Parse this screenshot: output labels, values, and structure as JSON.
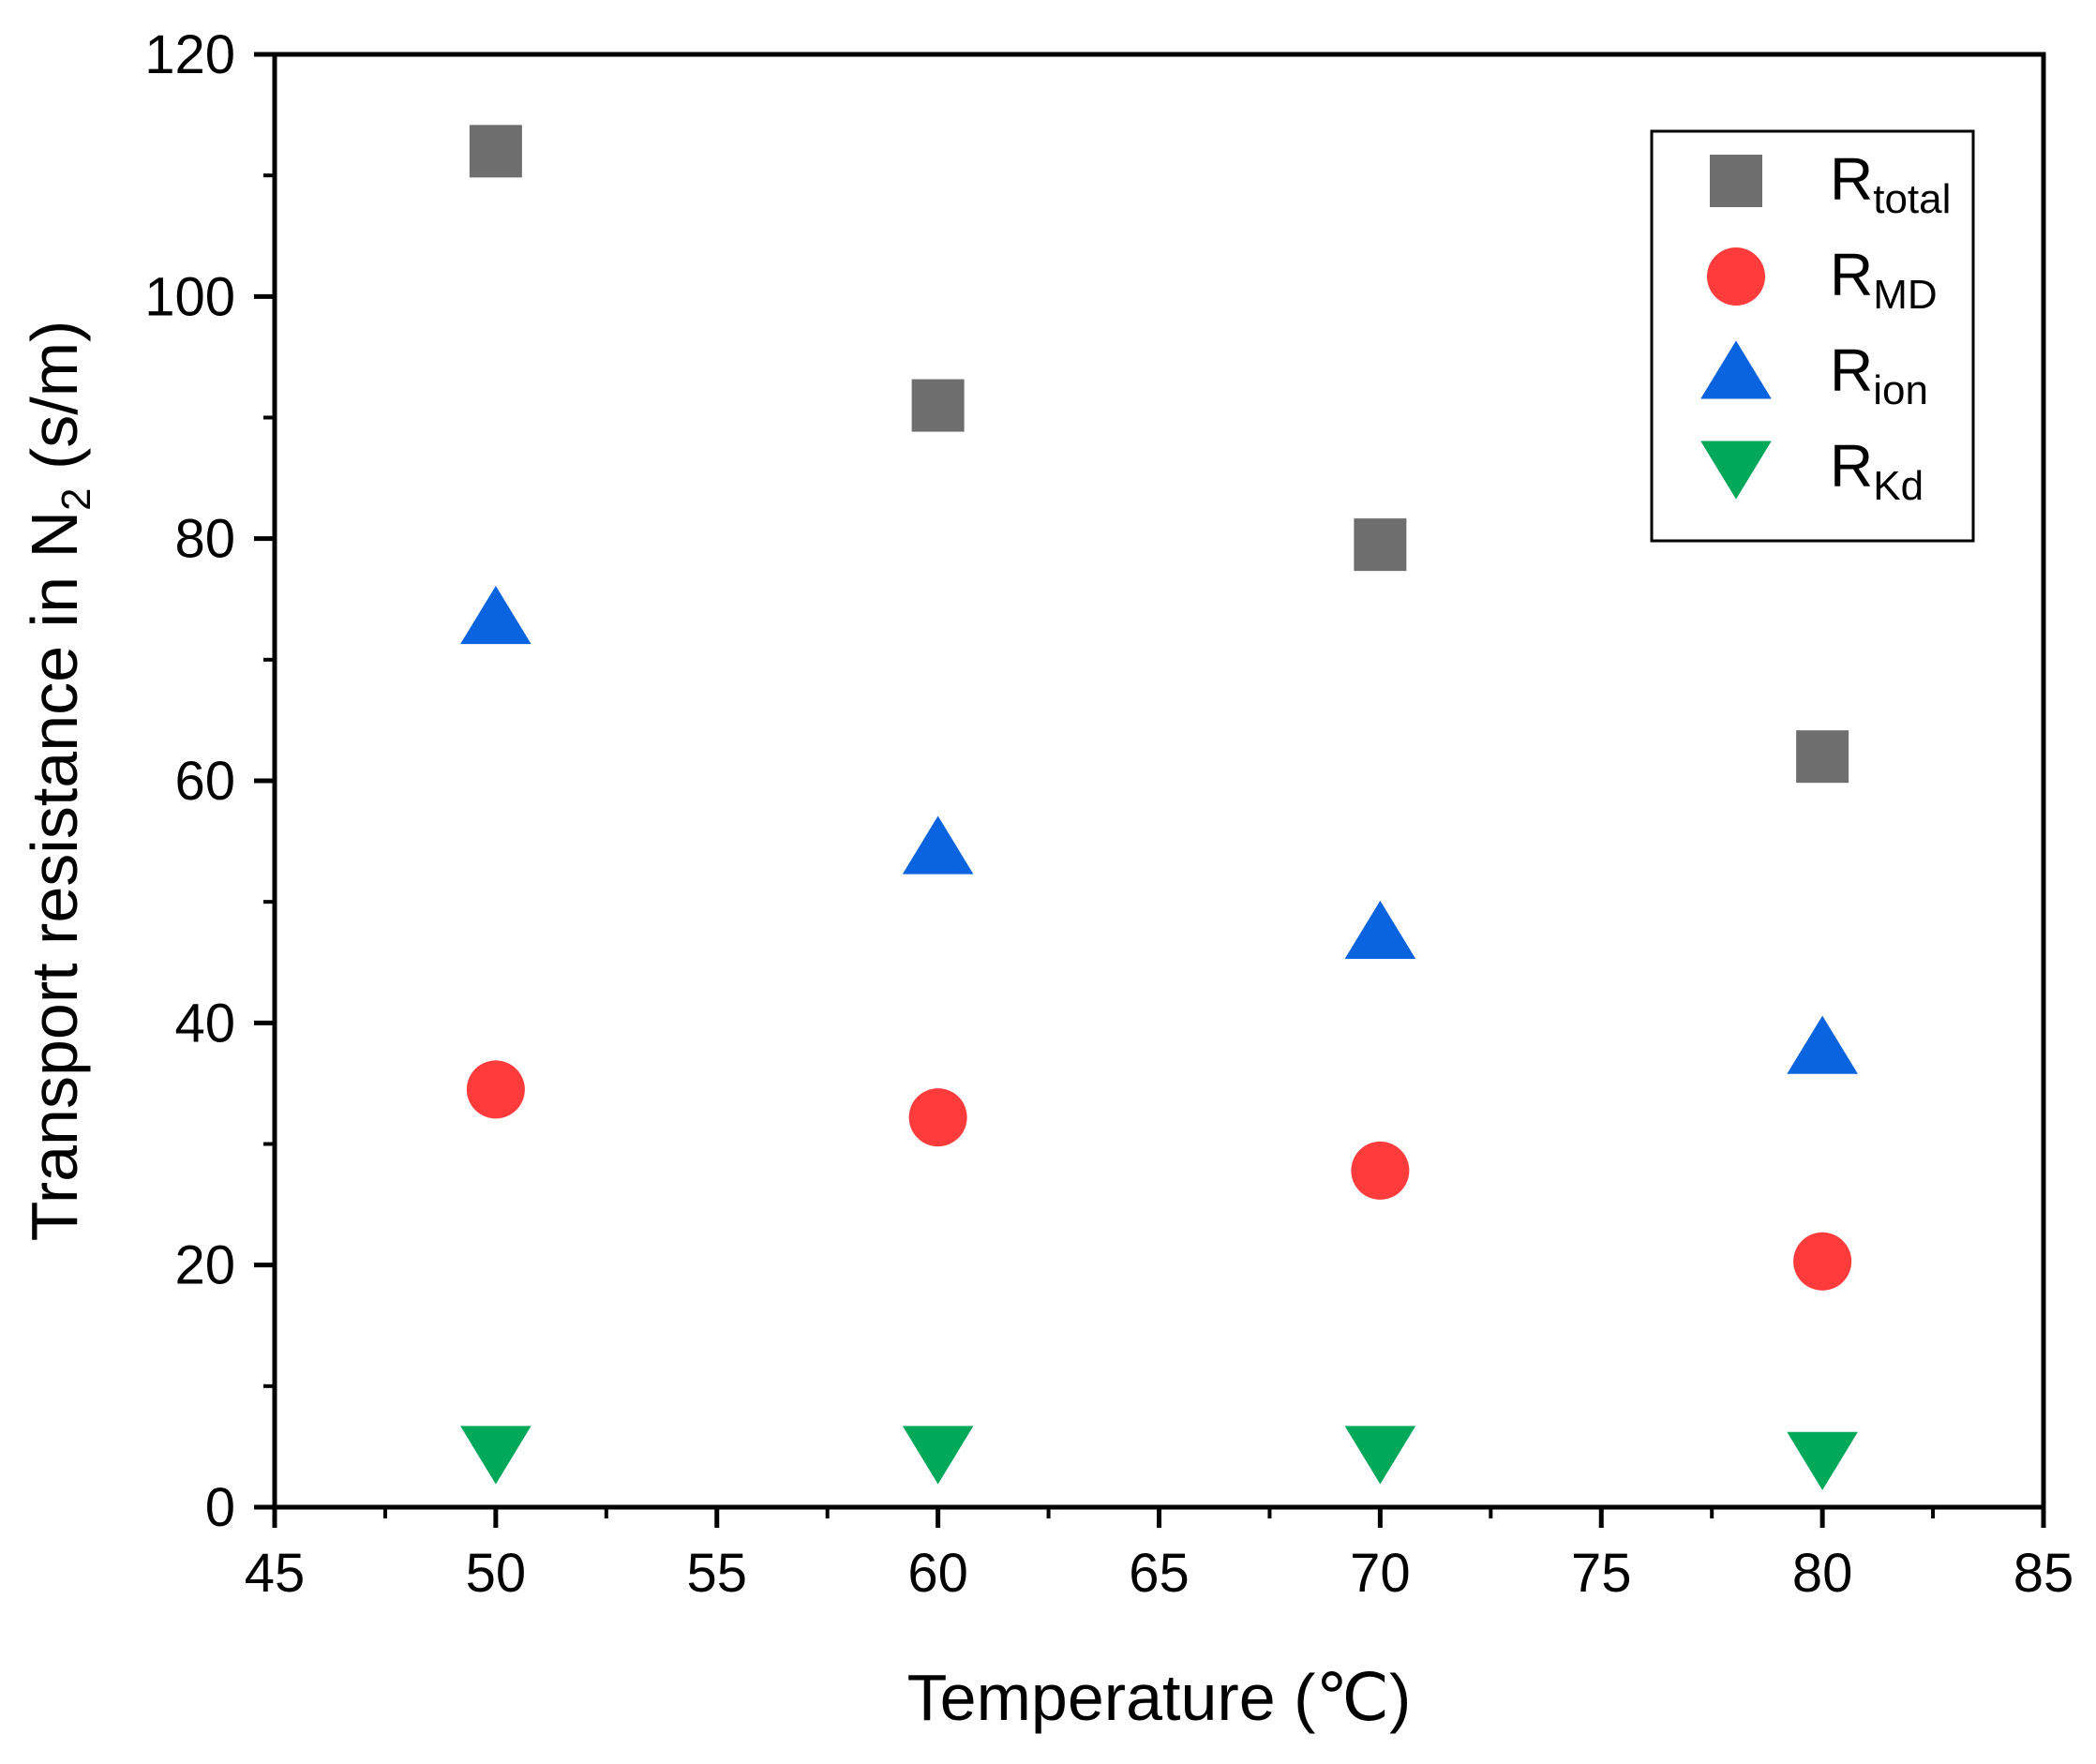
{
  "chart_data": {
    "type": "scatter",
    "title": "",
    "xlabel": "Temperature (℃)",
    "ylabel": {
      "prefix": "Transport resistance in N",
      "subscript": "2",
      "suffix": " (s/m)"
    },
    "xlim": [
      45,
      85
    ],
    "ylim": [
      0,
      120
    ],
    "xticks": [
      45,
      50,
      55,
      60,
      65,
      70,
      75,
      80,
      85
    ],
    "yticks": [
      0,
      20,
      40,
      60,
      80,
      100,
      120
    ],
    "grid": false,
    "legend_position": "top-right",
    "series": [
      {
        "name": "R",
        "subscript": "total",
        "marker": "square",
        "color": "#6e6e6e",
        "x": [
          50,
          60,
          70,
          80
        ],
        "y": [
          112,
          91,
          79.5,
          62
        ]
      },
      {
        "name": "R",
        "subscript": "MD",
        "marker": "circle",
        "color": "#ff3b3b",
        "x": [
          50,
          60,
          70,
          80
        ],
        "y": [
          34.5,
          32.2,
          27.8,
          20.3
        ]
      },
      {
        "name": "R",
        "subscript": "ion",
        "marker": "triangle-up",
        "color": "#0a64e0",
        "x": [
          50,
          60,
          70,
          80
        ],
        "y": [
          73.5,
          54.5,
          47.5,
          38
        ]
      },
      {
        "name": "R",
        "subscript": "Kd",
        "marker": "triangle-down",
        "color": "#00a85a",
        "x": [
          50,
          60,
          70,
          80
        ],
        "y": [
          4.5,
          4.5,
          4.5,
          4
        ]
      }
    ]
  }
}
